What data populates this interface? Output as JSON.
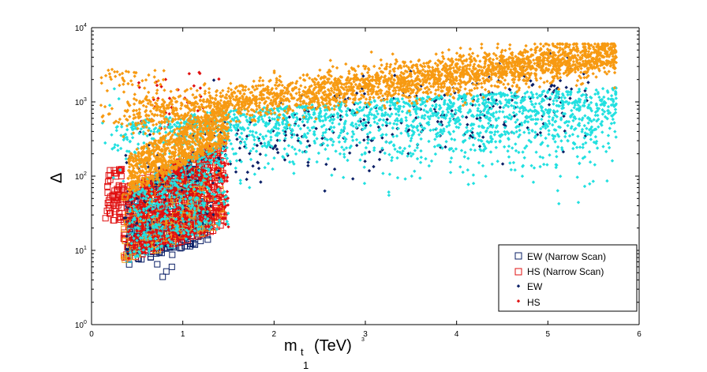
{
  "chart_data": {
    "type": "scatter",
    "title": "",
    "xlabel": "m",
    "xlabel_sub": "t",
    "xlabel_sub2": "1",
    "xlabel_units": "(TeV)",
    "ylabel": "Δ",
    "xlim": [
      0,
      6
    ],
    "ylim": [
      1,
      10000
    ],
    "yscale": "log",
    "x_ticks": [
      "0",
      "1",
      "2",
      "3",
      "4",
      "5",
      "6"
    ],
    "y_ticks": [
      {
        "base": "10",
        "exp": "0"
      },
      {
        "base": "10",
        "exp": "1"
      },
      {
        "base": "10",
        "exp": "2"
      },
      {
        "base": "10",
        "exp": "3"
      },
      {
        "base": "10",
        "exp": "4"
      }
    ],
    "legend_position": "bottom-right",
    "series": [
      {
        "name": "EW (Narrow Scan)",
        "marker": "open-square",
        "color": "#0a1f66",
        "region": {
          "x": [
            0.35,
            1.25
          ],
          "y": [
            5,
            120
          ]
        }
      },
      {
        "name": "HS (Narrow Scan)",
        "marker": "open-square",
        "color": "#e01010",
        "region": {
          "x": [
            0.12,
            1.5
          ],
          "y": [
            8,
            300
          ]
        }
      },
      {
        "name": "EW",
        "marker": "dot",
        "color": "#0a1f66",
        "region": {
          "x": [
            0.35,
            5.8
          ],
          "y": [
            8,
            4500
          ]
        }
      },
      {
        "name": "HS",
        "marker": "dot",
        "color": "#e01010",
        "region": {
          "x": [
            0.4,
            1.5
          ],
          "y": [
            10,
            2000
          ]
        }
      },
      {
        "name": "",
        "marker": "dot",
        "color": "#22e0e0",
        "region": {
          "x": [
            0.1,
            5.75
          ],
          "y": [
            10,
            4000
          ]
        }
      },
      {
        "name": "",
        "marker": "dot",
        "color": "#f79a12",
        "region": {
          "x": [
            0.1,
            5.75
          ],
          "y": [
            20,
            6000
          ]
        }
      }
    ]
  }
}
